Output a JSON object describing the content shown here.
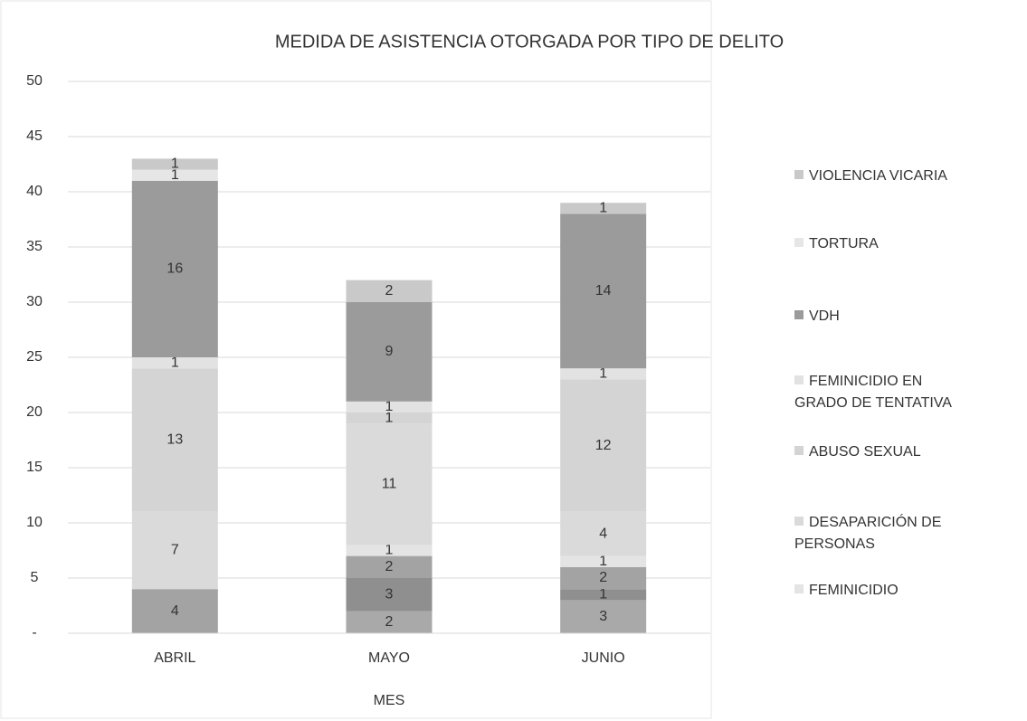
{
  "chart_data": {
    "type": "bar",
    "stacked": true,
    "title": "MEDIDA DE ASISTENCIA OTORGADA POR TIPO DE DELITO",
    "x_label": "MES",
    "categories": [
      "ABRIL",
      "MAYO",
      "JUNIO"
    ],
    "series": [
      {
        "color": "#a9a9a9",
        "values": [
          0,
          2,
          3
        ]
      },
      {
        "color": "#8f8f8f",
        "values": [
          0,
          3,
          1
        ]
      },
      {
        "color": "#a3a3a3",
        "values": [
          4,
          2,
          2
        ]
      },
      {
        "name": "FEMINICIDIO",
        "color": "#e4e4e4",
        "values": [
          0,
          1,
          1
        ]
      },
      {
        "name": "DESAPARICIÓN DE PERSONAS",
        "color": "#dadada",
        "values": [
          7,
          11,
          4
        ]
      },
      {
        "name": "ABUSO SEXUAL",
        "color": "#d4d4d4",
        "values": [
          13,
          1,
          12
        ]
      },
      {
        "name": "FEMINICIDIO EN GRADO DE TENTATIVA",
        "color": "#e2e2e2",
        "values": [
          1,
          1,
          1
        ]
      },
      {
        "name": "VDH",
        "color": "#9b9b9b",
        "values": [
          16,
          9,
          14
        ]
      },
      {
        "name": "TORTURA",
        "color": "#e6e6e6",
        "values": [
          1,
          0,
          0
        ]
      },
      {
        "name": "VIOLENCIA VICARIA",
        "color": "#c9c9c9",
        "values": [
          1,
          2,
          1
        ]
      }
    ],
    "ylim": [
      0,
      50
    ],
    "yticks": [
      {
        "value": 0,
        "label": "-"
      },
      5,
      10,
      15,
      20,
      25,
      30,
      35,
      40,
      45,
      50
    ],
    "grid": true,
    "legend": "right"
  }
}
